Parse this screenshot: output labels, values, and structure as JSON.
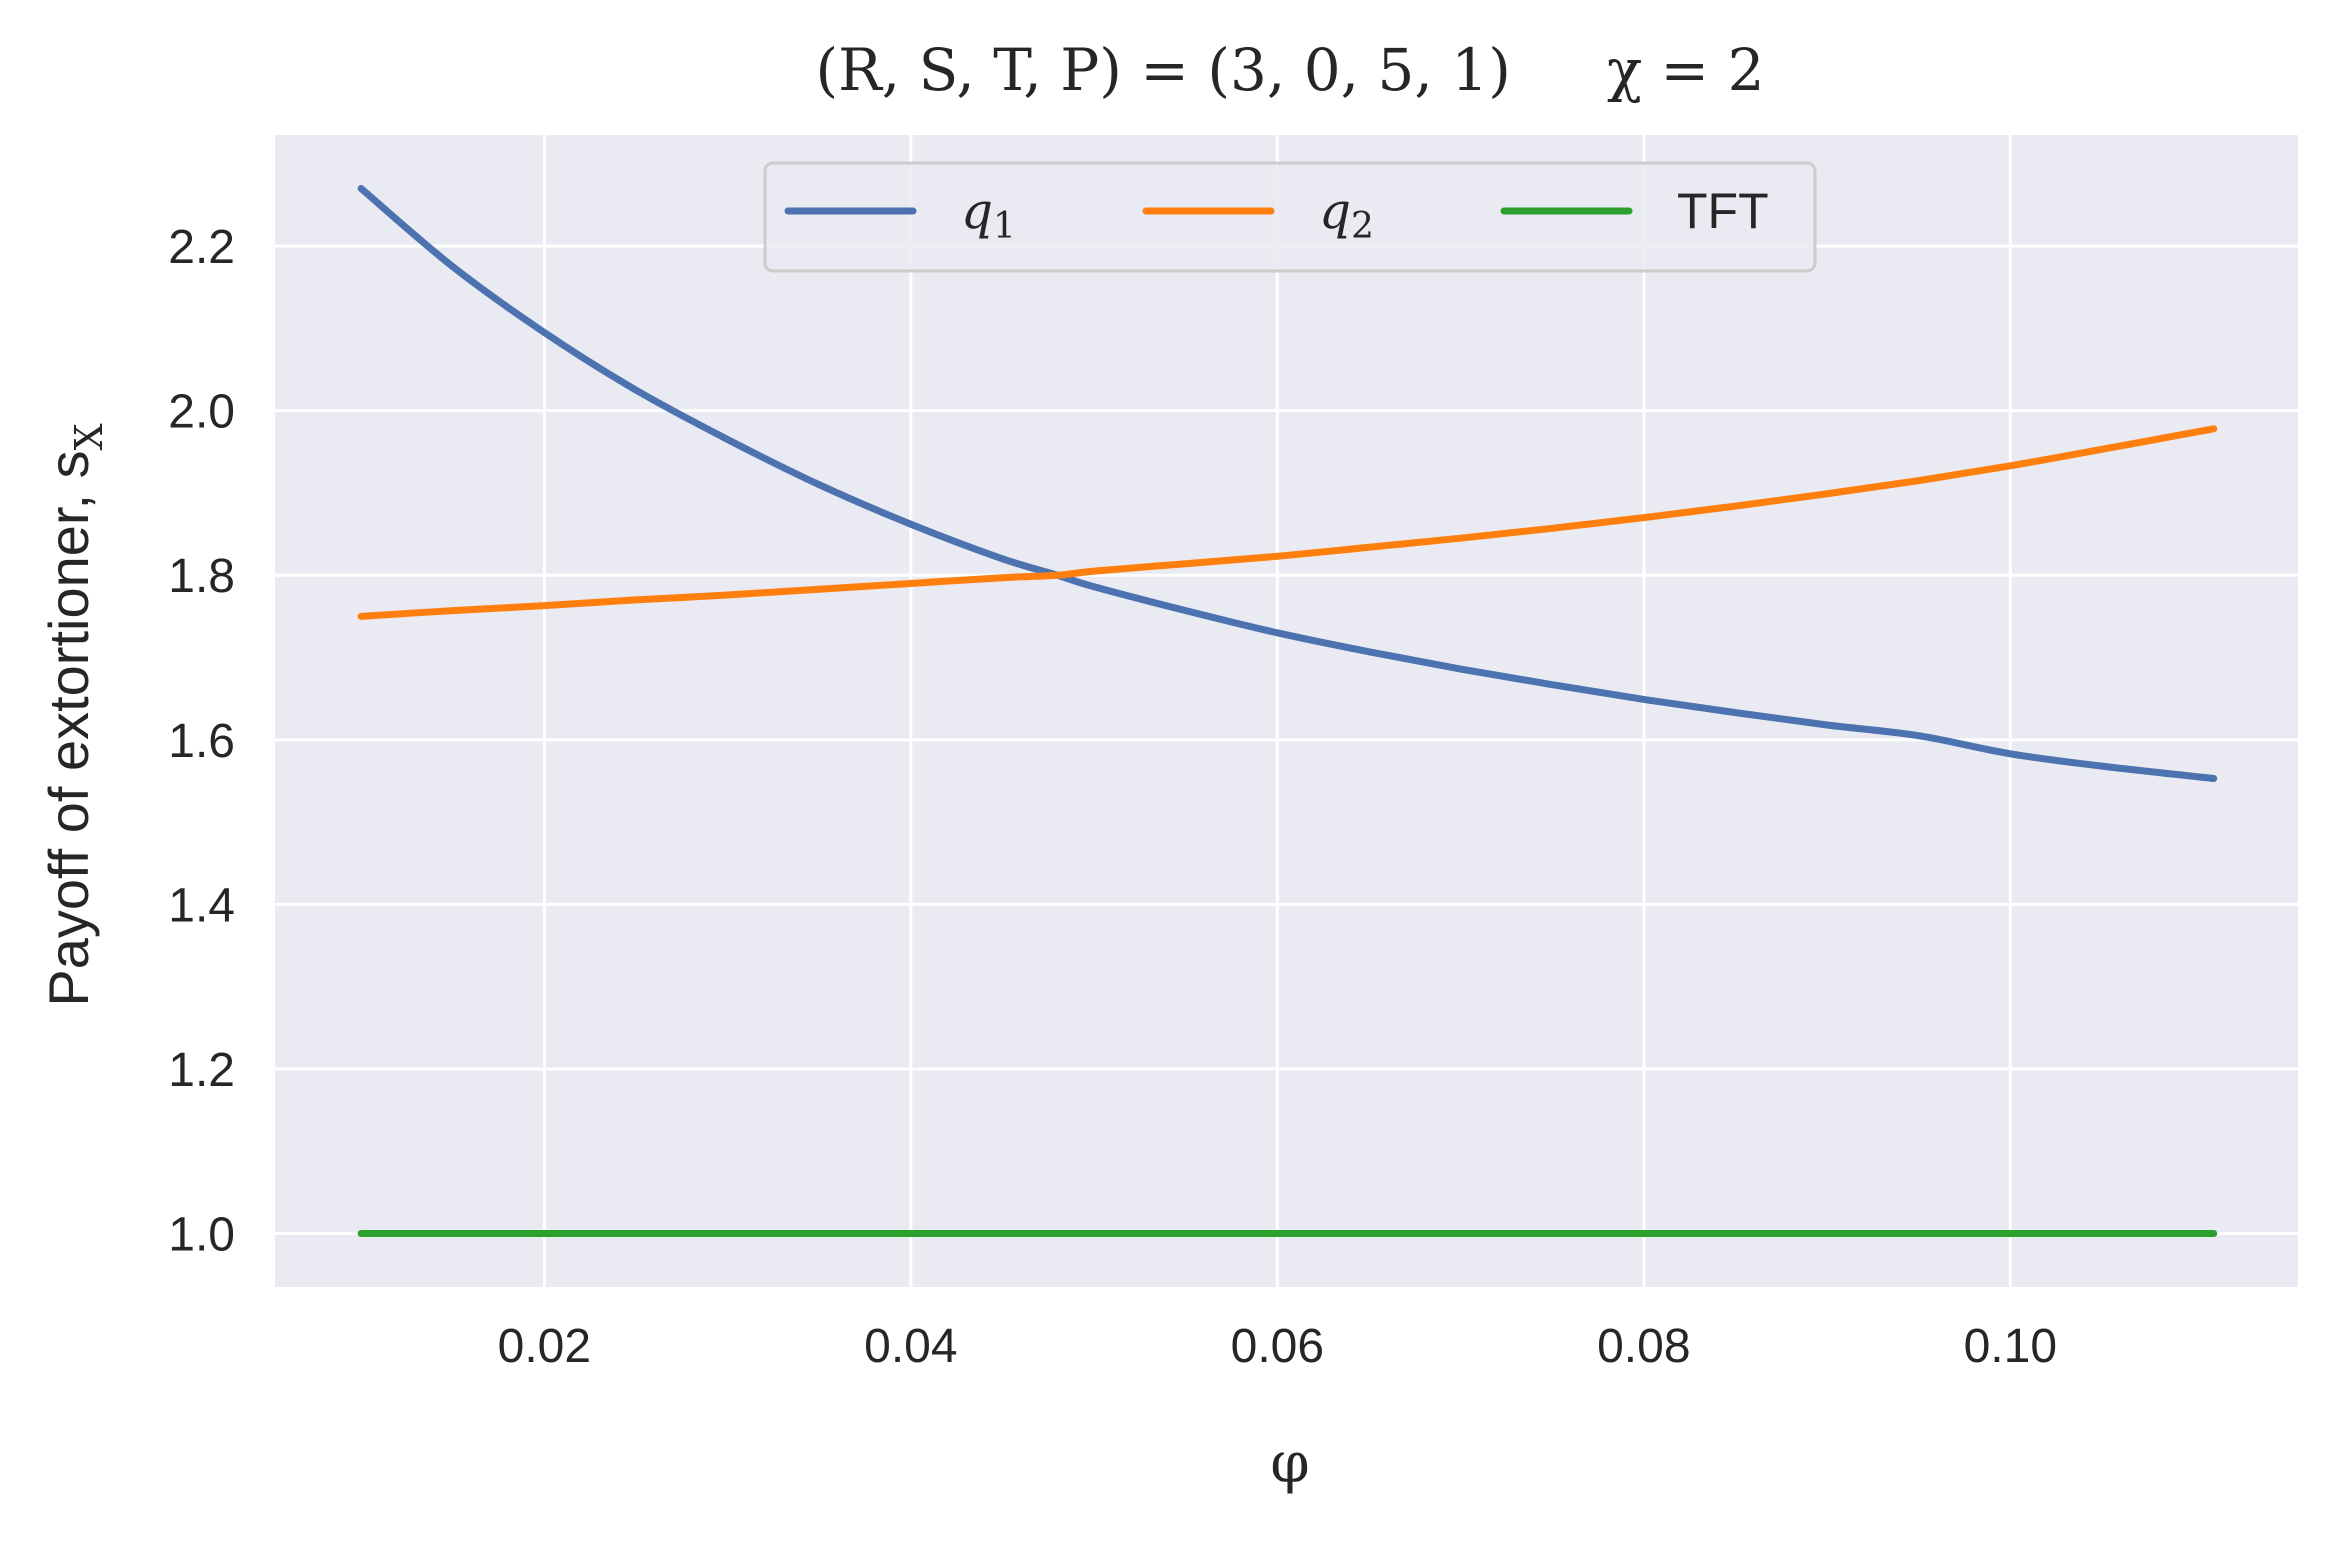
{
  "chart_data": {
    "type": "line",
    "title": "(R, S, T, P) = (3, 0, 5, 1)    χ = 2",
    "title_parts": {
      "params": "(R, S, T, P) = (3, 0, 5, 1)",
      "chi": "χ = 2"
    },
    "xlabel": "φ",
    "ylabel": "Payoff of extortioner, s",
    "ylabel_subscript": "X",
    "xlim": [
      0.0053,
      0.1157
    ],
    "ylim": [
      0.935,
      2.335
    ],
    "xticks": [
      0.02,
      0.04,
      0.06,
      0.08,
      0.1
    ],
    "xtick_labels": [
      "0.02",
      "0.04",
      "0.06",
      "0.08",
      "0.10"
    ],
    "yticks": [
      1.0,
      1.2,
      1.4,
      1.6,
      1.8,
      2.0,
      2.2
    ],
    "ytick_labels": [
      "1.0",
      "1.2",
      "1.4",
      "1.6",
      "1.8",
      "2.0",
      "2.2"
    ],
    "grid": true,
    "legend_position": "top-center",
    "background": "#eaeaf2",
    "series": [
      {
        "name": "q",
        "name_subscript": "1",
        "color": "#4c72b0",
        "x": [
          0.01,
          0.015,
          0.02,
          0.025,
          0.03,
          0.035,
          0.04,
          0.045,
          0.048,
          0.05,
          0.055,
          0.06,
          0.065,
          0.07,
          0.075,
          0.08,
          0.085,
          0.09,
          0.095,
          0.1,
          0.105,
          0.1111
        ],
        "y": [
          2.27,
          2.175,
          2.095,
          2.025,
          1.965,
          1.91,
          1.862,
          1.82,
          1.8,
          1.786,
          1.757,
          1.73,
          1.707,
          1.686,
          1.667,
          1.649,
          1.633,
          1.618,
          1.605,
          1.583,
          1.568,
          1.553
        ]
      },
      {
        "name": "q",
        "name_subscript": "2",
        "color": "#ff7f0e",
        "x": [
          0.01,
          0.015,
          0.02,
          0.025,
          0.03,
          0.035,
          0.04,
          0.045,
          0.048,
          0.05,
          0.055,
          0.06,
          0.065,
          0.07,
          0.075,
          0.08,
          0.085,
          0.09,
          0.095,
          0.1,
          0.105,
          0.1111
        ],
        "y": [
          1.75,
          1.757,
          1.763,
          1.77,
          1.776,
          1.783,
          1.79,
          1.797,
          1.8,
          1.805,
          1.814,
          1.823,
          1.834,
          1.845,
          1.857,
          1.87,
          1.884,
          1.899,
          1.915,
          1.933,
          1.953,
          1.978
        ]
      },
      {
        "name": "TFT",
        "name_subscript": "",
        "color": "#2ca02c",
        "x": [
          0.01,
          0.1111
        ],
        "y": [
          1.0,
          1.0
        ]
      }
    ]
  }
}
